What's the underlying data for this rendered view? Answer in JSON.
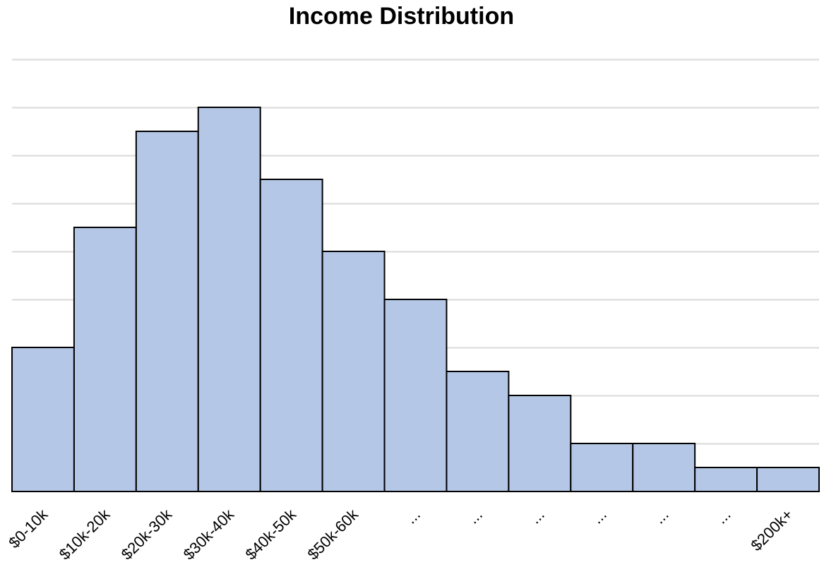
{
  "chart_data": {
    "type": "bar",
    "title": "Income Distribution",
    "xlabel": "",
    "ylabel": "",
    "categories": [
      "$0-10k",
      "$10k-20k",
      "$20k-30k",
      "$30k-40k",
      "$40k-50k",
      "$50k-60k",
      "...",
      "...",
      "...",
      "...",
      "...",
      "...",
      "$200k+"
    ],
    "values": [
      6,
      11,
      15,
      16,
      13,
      10,
      8,
      5,
      4,
      2,
      2,
      1,
      1
    ],
    "ylim": [
      0,
      18
    ],
    "grid": true,
    "legend": "none",
    "colors": {
      "bar_fill": "#b4c7e7",
      "bar_stroke": "#000000",
      "grid": "#d9d9d9"
    }
  }
}
